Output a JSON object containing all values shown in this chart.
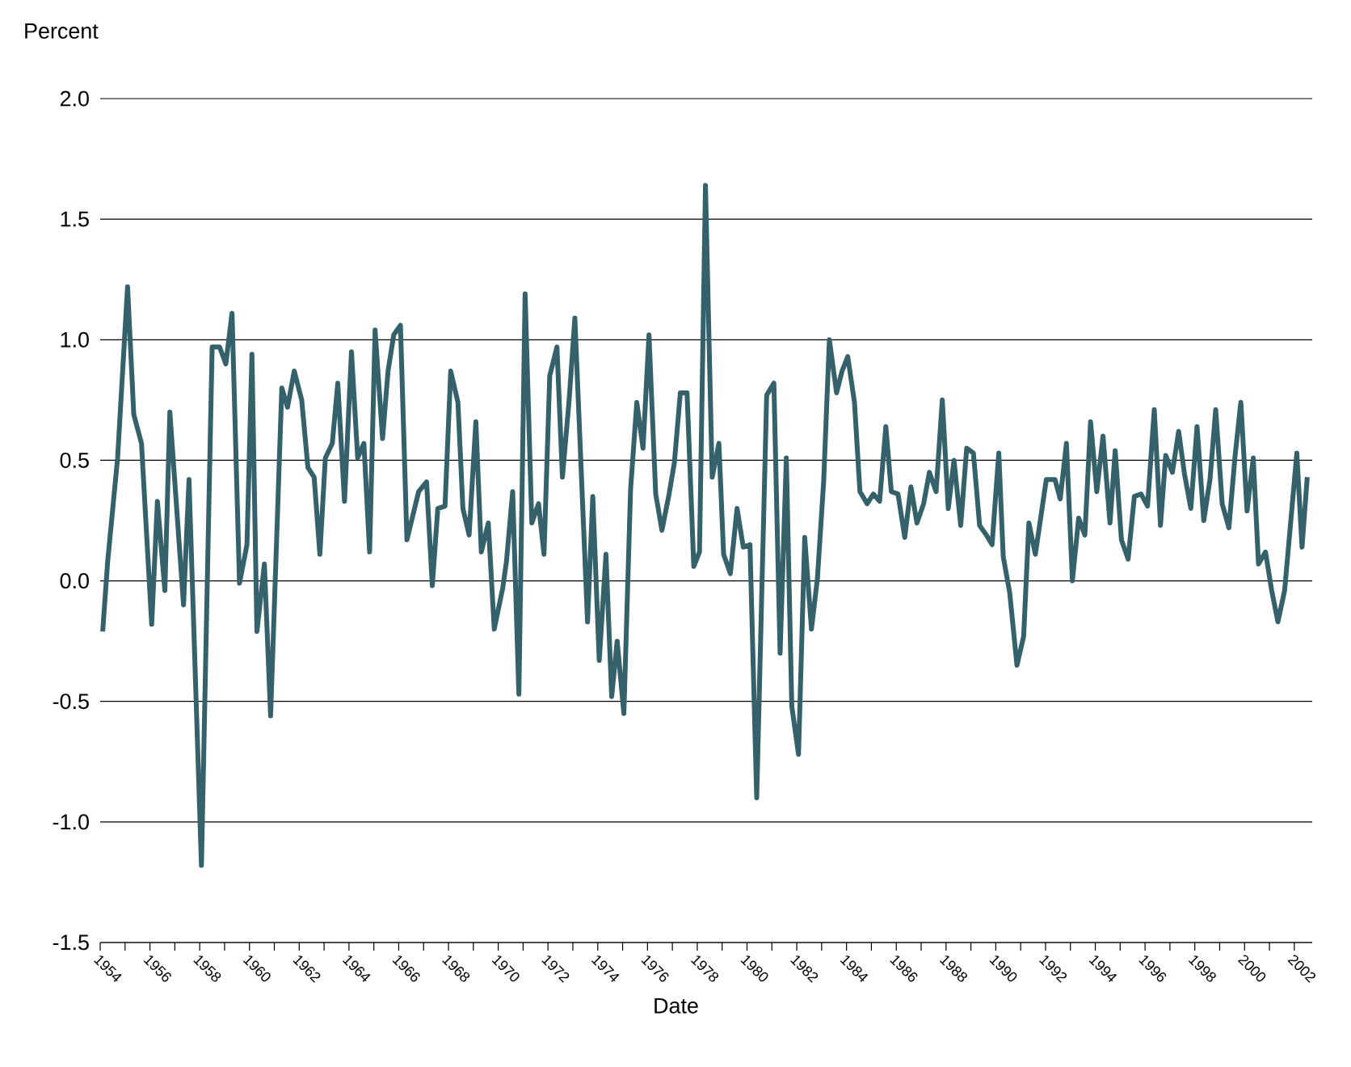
{
  "chart_data": {
    "type": "line",
    "xlabel": "Date",
    "ylabel": "Percent",
    "x": [
      1954.1,
      1954.3,
      1954.7,
      1955.1,
      1955.35,
      1955.66,
      1956.07,
      1956.3,
      1956.6,
      1956.8,
      1957.35,
      1957.57,
      1958.07,
      1958.5,
      1958.8,
      1959.05,
      1959.3,
      1959.6,
      1959.9,
      1960.1,
      1960.3,
      1960.6,
      1960.85,
      1961.3,
      1961.53,
      1961.8,
      1962.1,
      1962.35,
      1962.6,
      1962.83,
      1963.05,
      1963.33,
      1963.55,
      1963.82,
      1964.1,
      1964.35,
      1964.6,
      1964.83,
      1965.05,
      1965.35,
      1965.57,
      1965.8,
      1966.07,
      1966.33,
      1966.8,
      1967.12,
      1967.35,
      1967.57,
      1967.86,
      1968.09,
      1968.38,
      1968.58,
      1968.83,
      1969.1,
      1969.32,
      1969.6,
      1969.84,
      1970.18,
      1970.33,
      1970.58,
      1970.83,
      1971.08,
      1971.35,
      1971.62,
      1971.84,
      1972.07,
      1972.36,
      1972.58,
      1972.85,
      1973.08,
      1973.59,
      1973.8,
      1974.06,
      1974.33,
      1974.56,
      1974.78,
      1975.05,
      1975.32,
      1975.57,
      1975.82,
      1976.06,
      1976.33,
      1976.58,
      1976.85,
      1977.08,
      1977.32,
      1977.59,
      1977.86,
      1978.09,
      1978.33,
      1978.6,
      1978.87,
      1979.06,
      1979.33,
      1979.6,
      1979.85,
      1980.12,
      1980.39,
      1980.79,
      1981.08,
      1981.33,
      1981.58,
      1981.8,
      1982.07,
      1982.32,
      1982.59,
      1982.83,
      1983.08,
      1983.31,
      1983.6,
      1983.82,
      1984.05,
      1984.32,
      1984.54,
      1984.83,
      1985.08,
      1985.33,
      1985.58,
      1985.8,
      1986.07,
      1986.34,
      1986.59,
      1986.83,
      1987.1,
      1987.33,
      1987.6,
      1987.85,
      1988.09,
      1988.32,
      1988.59,
      1988.83,
      1989.1,
      1989.35,
      1989.62,
      1989.85,
      1990.12,
      1990.3,
      1990.56,
      1990.85,
      1991.12,
      1991.33,
      1991.59,
      1992.03,
      1992.38,
      1992.59,
      1992.84,
      1993.08,
      1993.33,
      1993.58,
      1993.81,
      1994.06,
      1994.31,
      1994.59,
      1994.8,
      1995.05,
      1995.32,
      1995.57,
      1995.84,
      1996.1,
      1996.37,
      1996.62,
      1996.83,
      1997.1,
      1997.35,
      1997.59,
      1997.84,
      1998.09,
      1998.36,
      1998.61,
      1998.84,
      1999.1,
      1999.37,
      1999.62,
      1999.85,
      2000.1,
      2000.35,
      2000.56,
      2000.84,
      2001.09,
      2001.34,
      2001.61,
      2001.86,
      2002.1,
      2002.31,
      2002.52
    ],
    "series": [
      {
        "color": "#35616b",
        "values": [
          -0.21,
          0.08,
          0.51,
          1.22,
          0.69,
          0.57,
          -0.18,
          0.33,
          -0.04,
          0.7,
          -0.1,
          0.42,
          -1.18,
          0.97,
          0.97,
          0.9,
          1.11,
          -0.01,
          0.15,
          0.94,
          -0.21,
          0.07,
          -0.56,
          0.8,
          0.72,
          0.87,
          0.75,
          0.47,
          0.43,
          0.11,
          0.51,
          0.57,
          0.82,
          0.33,
          0.95,
          0.51,
          0.57,
          0.12,
          1.04,
          0.59,
          0.87,
          1.02,
          1.06,
          0.17,
          0.37,
          0.41,
          -0.02,
          0.3,
          0.31,
          0.87,
          0.74,
          0.3,
          0.19,
          0.66,
          0.12,
          0.24,
          -0.2,
          -0.03,
          0.08,
          0.37,
          -0.47,
          1.19,
          0.24,
          0.32,
          0.11,
          0.85,
          0.97,
          0.43,
          0.75,
          1.09,
          -0.17,
          0.35,
          -0.33,
          0.11,
          -0.48,
          -0.25,
          -0.55,
          0.38,
          0.74,
          0.55,
          1.02,
          0.36,
          0.21,
          0.35,
          0.49,
          0.78,
          0.78,
          0.06,
          0.12,
          1.64,
          0.43,
          0.57,
          0.11,
          0.03,
          0.3,
          0.14,
          0.15,
          -0.9,
          0.77,
          0.82,
          -0.3,
          0.51,
          -0.52,
          -0.72,
          0.18,
          -0.2,
          0.01,
          0.41,
          1.0,
          0.78,
          0.87,
          0.93,
          0.74,
          0.37,
          0.32,
          0.36,
          0.33,
          0.64,
          0.37,
          0.36,
          0.18,
          0.39,
          0.24,
          0.32,
          0.45,
          0.37,
          0.75,
          0.3,
          0.5,
          0.23,
          0.55,
          0.53,
          0.23,
          0.19,
          0.15,
          0.53,
          0.1,
          -0.05,
          -0.35,
          -0.23,
          0.24,
          0.11,
          0.42,
          0.42,
          0.34,
          0.57,
          0.0,
          0.26,
          0.19,
          0.66,
          0.37,
          0.6,
          0.24,
          0.54,
          0.17,
          0.09,
          0.35,
          0.36,
          0.31,
          0.71,
          0.23,
          0.52,
          0.45,
          0.62,
          0.44,
          0.3,
          0.64,
          0.25,
          0.42,
          0.71,
          0.32,
          0.22,
          0.52,
          0.74,
          0.29,
          0.51,
          0.07,
          0.12,
          -0.04,
          -0.17,
          -0.04,
          0.25,
          0.53,
          0.14,
          0.43
        ]
      }
    ],
    "xlim": [
      1954,
      2002.72
    ],
    "ylim": [
      -1.5,
      2.0
    ],
    "xticks": [
      1954,
      {
        "value": 1955,
        "label": null
      },
      1956,
      {
        "value": 1957,
        "label": null
      },
      1958,
      {
        "value": 1959,
        "label": null
      },
      1960,
      {
        "value": 1961,
        "label": null
      },
      1962,
      {
        "value": 1963,
        "label": null
      },
      1964,
      {
        "value": 1965,
        "label": null
      },
      1966,
      {
        "value": 1967,
        "label": null
      },
      1968,
      {
        "value": 1969,
        "label": null
      },
      1970,
      {
        "value": 1971,
        "label": null
      },
      1972,
      {
        "value": 1973,
        "label": null
      },
      1974,
      {
        "value": 1975,
        "label": null
      },
      1976,
      {
        "value": 1977,
        "label": null
      },
      1978,
      {
        "value": 1979,
        "label": null
      },
      1980,
      {
        "value": 1981,
        "label": null
      },
      1982,
      {
        "value": 1983,
        "label": null
      },
      1984,
      {
        "value": 1985,
        "label": null
      },
      1986,
      {
        "value": 1987,
        "label": null
      },
      1988,
      {
        "value": 1989,
        "label": null
      },
      1990,
      {
        "value": 1991,
        "label": null
      },
      1992,
      {
        "value": 1993,
        "label": null
      },
      1994,
      {
        "value": 1995,
        "label": null
      },
      1996,
      {
        "value": 1997,
        "label": null
      },
      1998,
      {
        "value": 1999,
        "label": null
      },
      2000,
      {
        "value": 2001,
        "label": null
      },
      2002
    ],
    "yticks": [
      {
        "value": -1.5,
        "label": "-1.5"
      },
      {
        "value": -1.0,
        "label": "-1.0"
      },
      -0.5,
      {
        "value": 0,
        "label": "0.0"
      },
      0.5,
      {
        "value": 1.0,
        "label": "1.0"
      },
      1.5,
      {
        "value": 2.0,
        "label": "2.0"
      }
    ],
    "grid": "y"
  }
}
